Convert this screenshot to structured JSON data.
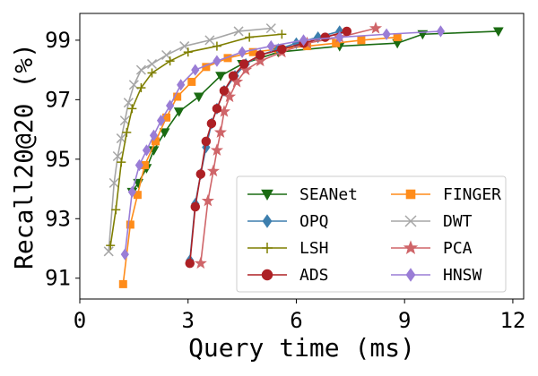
{
  "chart_data": {
    "type": "line",
    "title": "",
    "xlabel": "Query time (ms)",
    "ylabel": "Recall20@20 (%)",
    "xlim": [
      0,
      12.3
    ],
    "ylim": [
      90.3,
      99.9
    ],
    "xticks": [
      0,
      3,
      6,
      9,
      12
    ],
    "yticks": [
      91,
      93,
      95,
      97,
      99
    ],
    "xtick_labels": [
      "0",
      "3",
      "6",
      "9",
      "12"
    ],
    "ytick_labels": [
      "91",
      "93",
      "95",
      "97",
      "99"
    ],
    "grid": false,
    "legend_position": "lower-right",
    "legend_columns": 2,
    "series": [
      {
        "name": "SEANet",
        "color": "#1a6b12",
        "marker": "triangle-down",
        "x": [
          1.45,
          1.62,
          1.85,
          2.05,
          2.35,
          2.75,
          3.3,
          3.9,
          4.5,
          5.5,
          7.2,
          8.8,
          9.5,
          11.6
        ],
        "y": [
          93.9,
          94.2,
          94.7,
          95.3,
          95.9,
          96.6,
          97.1,
          97.8,
          98.2,
          98.6,
          98.8,
          98.9,
          99.2,
          99.3
        ]
      },
      {
        "name": "FINGER",
        "color": "#ff8c1a",
        "marker": "square",
        "x": [
          1.2,
          1.4,
          1.6,
          1.8,
          2.1,
          2.4,
          2.7,
          3.1,
          3.5,
          4.1,
          4.8,
          5.5,
          6.3,
          7.1,
          7.8,
          8.8
        ],
        "y": [
          90.8,
          92.8,
          93.8,
          94.8,
          95.6,
          96.4,
          97.1,
          97.6,
          98.1,
          98.4,
          98.6,
          98.7,
          98.8,
          98.9,
          99.0,
          99.1
        ],
        "hidden_in_legend_marker": false
      },
      {
        "name": "OPQ",
        "color": "#3d7fae",
        "marker": "diamond",
        "x": [
          3.05,
          3.2,
          3.35,
          3.5,
          3.65,
          3.8,
          4.0,
          4.3,
          4.6,
          5.0,
          5.5,
          6.0,
          6.6,
          7.2
        ],
        "y": [
          91.6,
          93.5,
          94.5,
          95.4,
          96.2,
          96.7,
          97.3,
          97.8,
          98.2,
          98.5,
          98.7,
          98.9,
          99.1,
          99.3
        ]
      },
      {
        "name": "DWT",
        "color": "#a6a6a6",
        "marker": "x",
        "x": [
          0.8,
          0.95,
          1.05,
          1.15,
          1.25,
          1.35,
          1.5,
          1.7,
          2.0,
          2.4,
          2.9,
          3.6,
          4.4,
          5.3
        ],
        "y": [
          91.9,
          94.2,
          95.1,
          95.7,
          96.3,
          96.9,
          97.5,
          98.0,
          98.2,
          98.5,
          98.8,
          99.0,
          99.3,
          99.4
        ]
      },
      {
        "name": "LSH",
        "color": "#7f7f00",
        "marker": "plus",
        "x": [
          0.85,
          1.0,
          1.15,
          1.3,
          1.45,
          1.7,
          2.0,
          2.5,
          3.0,
          3.8,
          4.7,
          5.6
        ],
        "y": [
          92.1,
          93.3,
          94.9,
          95.9,
          96.7,
          97.4,
          97.9,
          98.3,
          98.6,
          98.8,
          99.1,
          99.2
        ]
      },
      {
        "name": "PCA",
        "color": "#cf6569",
        "marker": "star",
        "x": [
          3.35,
          3.55,
          3.7,
          3.8,
          3.9,
          4.0,
          4.15,
          4.35,
          4.6,
          5.0,
          5.6,
          6.3,
          7.2,
          8.2
        ],
        "y": [
          91.5,
          93.6,
          94.6,
          95.3,
          95.9,
          96.6,
          97.1,
          97.6,
          98.0,
          98.3,
          98.6,
          98.9,
          99.1,
          99.4
        ]
      },
      {
        "name": "ADS",
        "color": "#ad2025",
        "marker": "circle",
        "x": [
          3.05,
          3.2,
          3.35,
          3.5,
          3.65,
          3.8,
          4.0,
          4.25,
          4.55,
          5.0,
          5.6,
          6.2,
          6.8,
          7.4
        ],
        "y": [
          91.5,
          93.4,
          94.5,
          95.6,
          96.2,
          96.7,
          97.3,
          97.8,
          98.2,
          98.5,
          98.7,
          98.9,
          99.1,
          99.3
        ]
      },
      {
        "name": "HNSW",
        "color": "#9a7dd6",
        "marker": "diamond",
        "x": [
          1.25,
          1.45,
          1.65,
          1.85,
          2.05,
          2.25,
          2.5,
          2.8,
          3.2,
          3.8,
          4.5,
          5.3,
          6.2,
          7.2,
          8.5,
          10.0
        ],
        "y": [
          91.8,
          93.9,
          94.8,
          95.3,
          95.8,
          96.3,
          96.8,
          97.5,
          98.0,
          98.3,
          98.6,
          98.8,
          99.0,
          99.1,
          99.2,
          99.3
        ]
      }
    ]
  }
}
